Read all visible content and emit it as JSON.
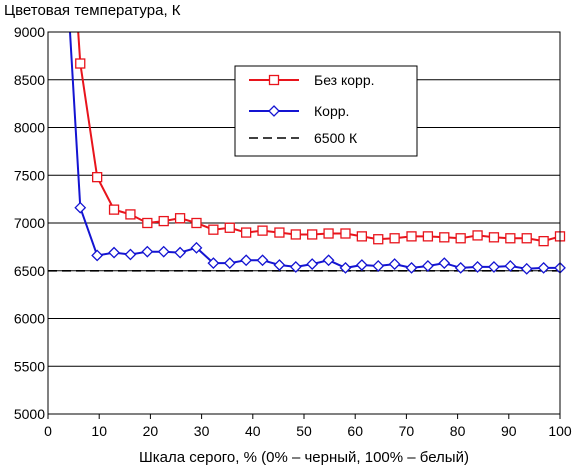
{
  "chart_data": {
    "type": "line",
    "title": "Цветовая температура, К",
    "xlabel": "Шкала серого, % (0% – черный, 100% – белый)",
    "ylabel": "",
    "xlim": [
      0,
      100
    ],
    "ylim": [
      5000,
      9000
    ],
    "xticks": [
      0,
      10,
      20,
      30,
      40,
      50,
      60,
      70,
      80,
      90,
      100
    ],
    "yticks": [
      5000,
      5500,
      6000,
      6500,
      7000,
      7500,
      8000,
      8500,
      9000
    ],
    "grid": "horizontal",
    "legend_position": "top-right",
    "series": [
      {
        "name": "Без корр.",
        "color": "#e8141c",
        "marker": "square",
        "x": [
          6.3,
          9.6,
          12.9,
          16.1,
          19.4,
          22.6,
          25.8,
          29,
          32.3,
          35.5,
          38.7,
          41.9,
          45.2,
          48.4,
          51.6,
          54.8,
          58.1,
          61.3,
          64.5,
          67.7,
          71,
          74.2,
          77.4,
          80.6,
          83.9,
          87.1,
          90.3,
          93.5,
          96.8,
          100
        ],
        "y": [
          8670,
          7480,
          7140,
          7090,
          7000,
          7020,
          7050,
          7000,
          6930,
          6950,
          6900,
          6920,
          6900,
          6880,
          6880,
          6890,
          6890,
          6860,
          6830,
          6840,
          6860,
          6860,
          6850,
          6840,
          6870,
          6850,
          6840,
          6840,
          6810,
          6860
        ]
      },
      {
        "name": "Корр.",
        "color": "#1414d2",
        "marker": "diamond",
        "x": [
          6.3,
          9.6,
          12.9,
          16.1,
          19.4,
          22.6,
          25.8,
          29,
          32.3,
          35.5,
          38.7,
          41.9,
          45.2,
          48.4,
          51.6,
          54.8,
          58.1,
          61.3,
          64.5,
          67.7,
          71,
          74.2,
          77.4,
          80.6,
          83.9,
          87.1,
          90.3,
          93.5,
          96.8,
          100
        ],
        "y": [
          7160,
          6660,
          6690,
          6670,
          6700,
          6700,
          6690,
          6740,
          6580,
          6580,
          6610,
          6610,
          6560,
          6540,
          6570,
          6610,
          6530,
          6560,
          6550,
          6570,
          6530,
          6550,
          6580,
          6530,
          6540,
          6540,
          6550,
          6520,
          6530,
          6530
        ]
      },
      {
        "name": "6500 К",
        "color": "#000000",
        "marker": "none",
        "dashed": true,
        "x": [
          0,
          100
        ],
        "y": [
          6500,
          6500
        ]
      }
    ],
    "offscale_start": [
      {
        "series": 0,
        "x": 5.9,
        "y": 9000
      },
      {
        "series": 1,
        "x": 4.3,
        "y": 9000
      }
    ]
  }
}
